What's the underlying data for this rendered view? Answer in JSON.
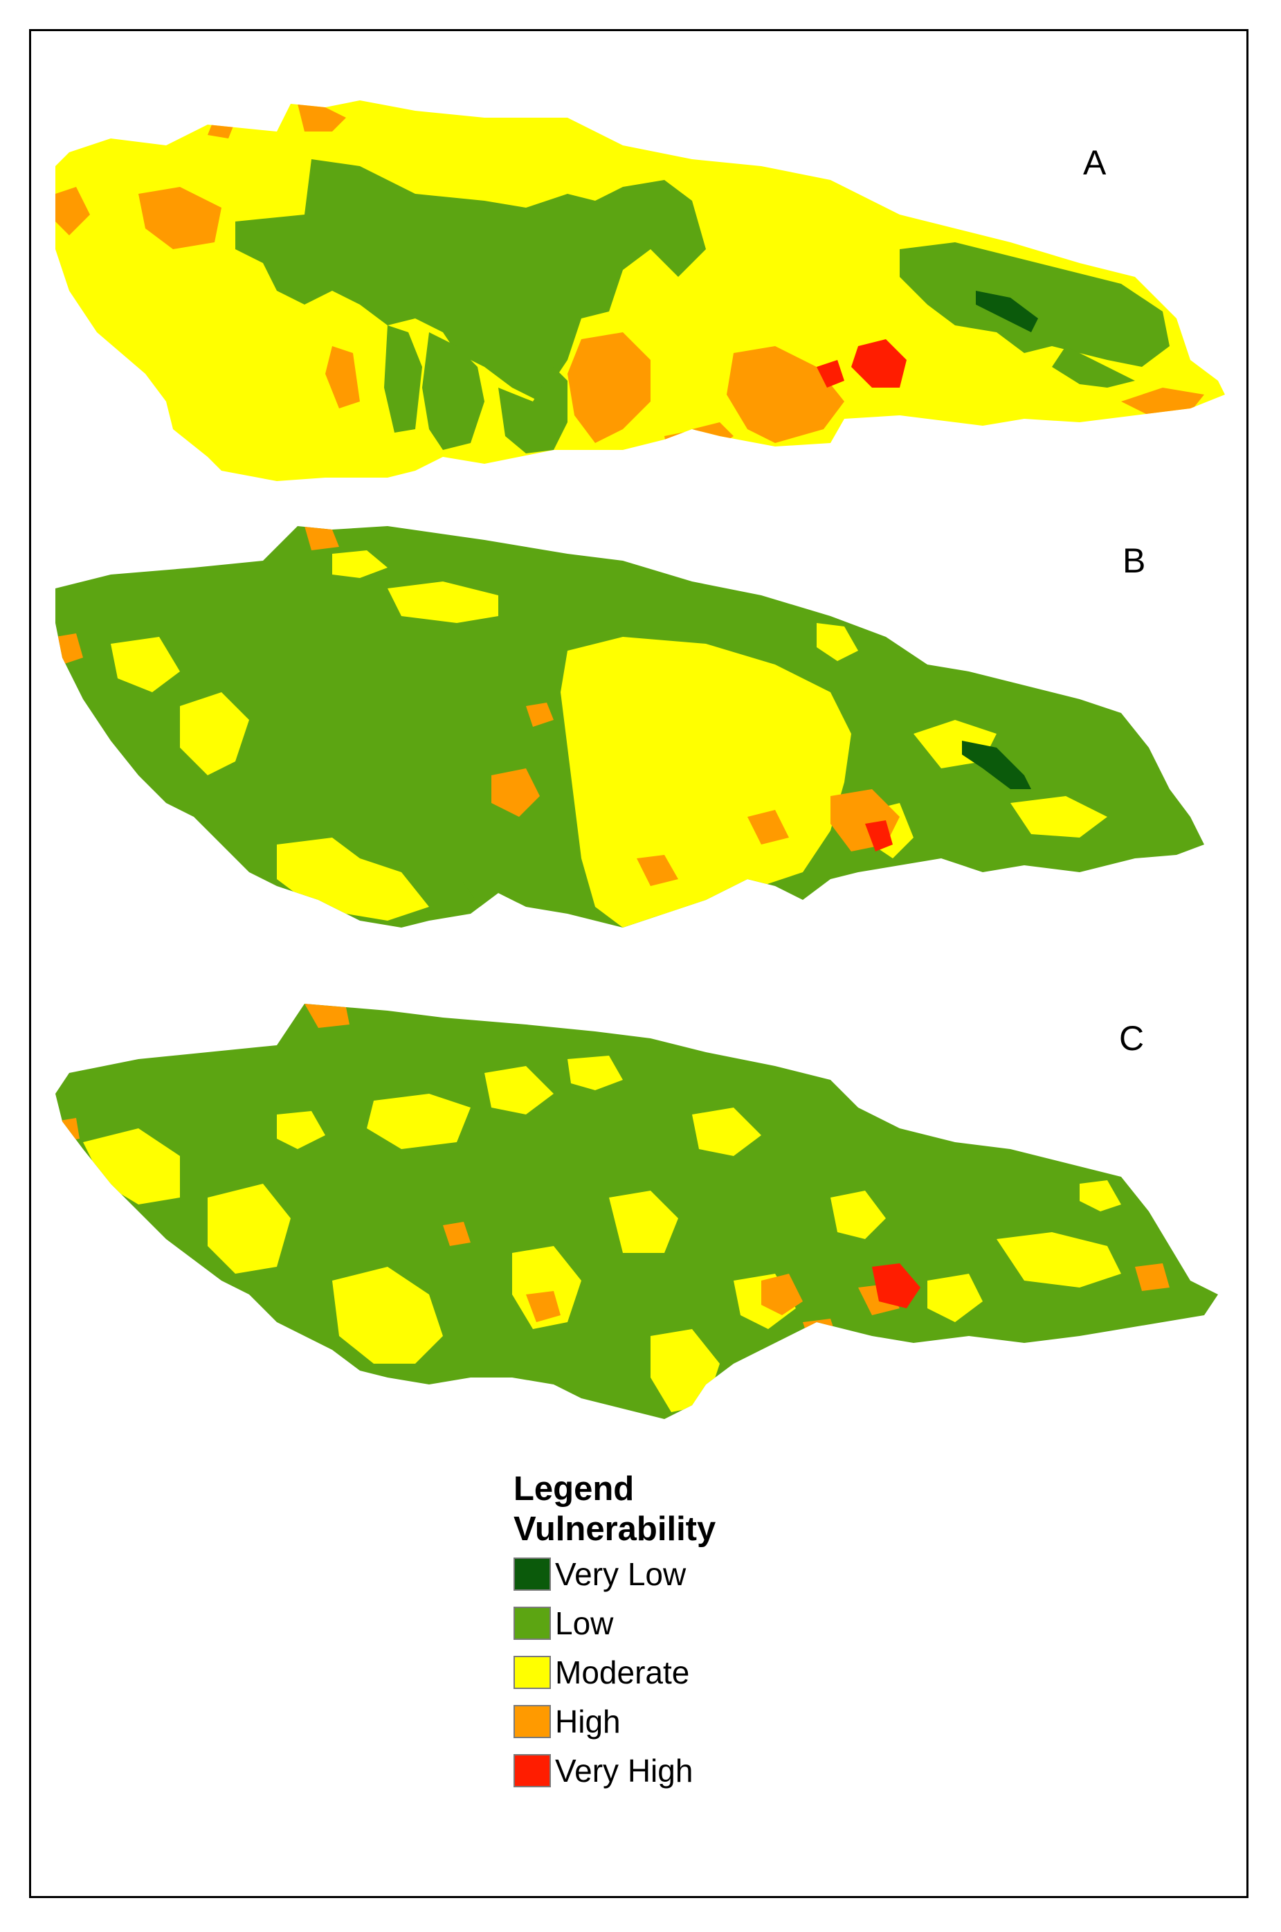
{
  "panels": [
    {
      "label": "A"
    },
    {
      "label": "B"
    },
    {
      "label": "C"
    }
  ],
  "legend": {
    "title": "Legend",
    "subtitle": "Vulnerability",
    "items": [
      {
        "label": "Very Low",
        "color": "#0b5a0b"
      },
      {
        "label": "Low",
        "color": "#5ca512"
      },
      {
        "label": "Moderate",
        "color": "#ffff00"
      },
      {
        "label": "High",
        "color": "#ff9a00"
      },
      {
        "label": "Very High",
        "color": "#ff1d00"
      }
    ]
  }
}
